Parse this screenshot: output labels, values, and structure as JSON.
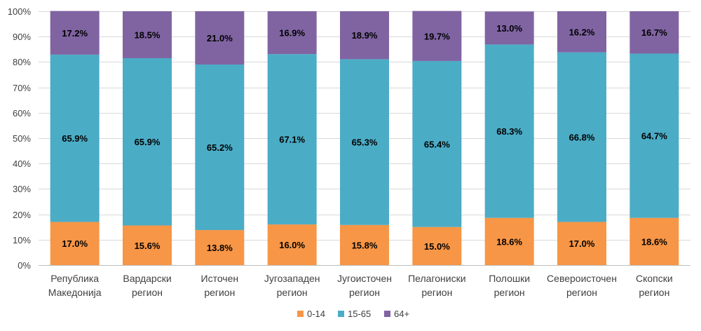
{
  "chart_data": {
    "type": "bar",
    "stacked": true,
    "categories": [
      [
        "Република",
        "Македонија"
      ],
      [
        "Вардарски",
        "регион"
      ],
      [
        "Источен",
        "регион"
      ],
      [
        "Југозападен",
        "регион"
      ],
      [
        "Југоисточен",
        "регион"
      ],
      [
        "Пелагониски",
        "регион"
      ],
      [
        "Полошки",
        "регион"
      ],
      [
        "Североисточен",
        "регион"
      ],
      [
        "Скопски",
        "регион"
      ]
    ],
    "series": [
      {
        "name": "0-14",
        "color": "#F79646",
        "values": [
          17.0,
          15.6,
          13.8,
          16.0,
          15.8,
          15.0,
          18.6,
          17.0,
          18.6
        ],
        "labels": [
          "17.0%",
          "15.6%",
          "13.8%",
          "16.0%",
          "15.8%",
          "15.0%",
          "18.6%",
          "17.0%",
          "18.6%"
        ]
      },
      {
        "name": "15-65",
        "color": "#4BACC6",
        "values": [
          65.9,
          65.9,
          65.2,
          67.1,
          65.3,
          65.4,
          68.3,
          66.8,
          64.7
        ],
        "labels": [
          "65.9%",
          "65.9%",
          "65.2%",
          "67.1%",
          "65.3%",
          "65.4%",
          "68.3%",
          "66.8%",
          "64.7%"
        ]
      },
      {
        "name": "64+",
        "color": "#8064A2",
        "values": [
          17.2,
          18.5,
          21.0,
          16.9,
          18.9,
          19.7,
          13.0,
          16.2,
          16.7
        ],
        "labels": [
          "17.2%",
          "18.5%",
          "21.0%",
          "16.9%",
          "18.9%",
          "19.7%",
          "13.0%",
          "16.2%",
          "16.7%"
        ]
      }
    ],
    "yticks": [
      "0%",
      "10%",
      "20%",
      "30%",
      "40%",
      "50%",
      "60%",
      "70%",
      "80%",
      "90%",
      "100%"
    ],
    "ylim": [
      0,
      100
    ],
    "grid": true,
    "legend": "bottom",
    "title": "",
    "xlabel": "",
    "ylabel": ""
  }
}
